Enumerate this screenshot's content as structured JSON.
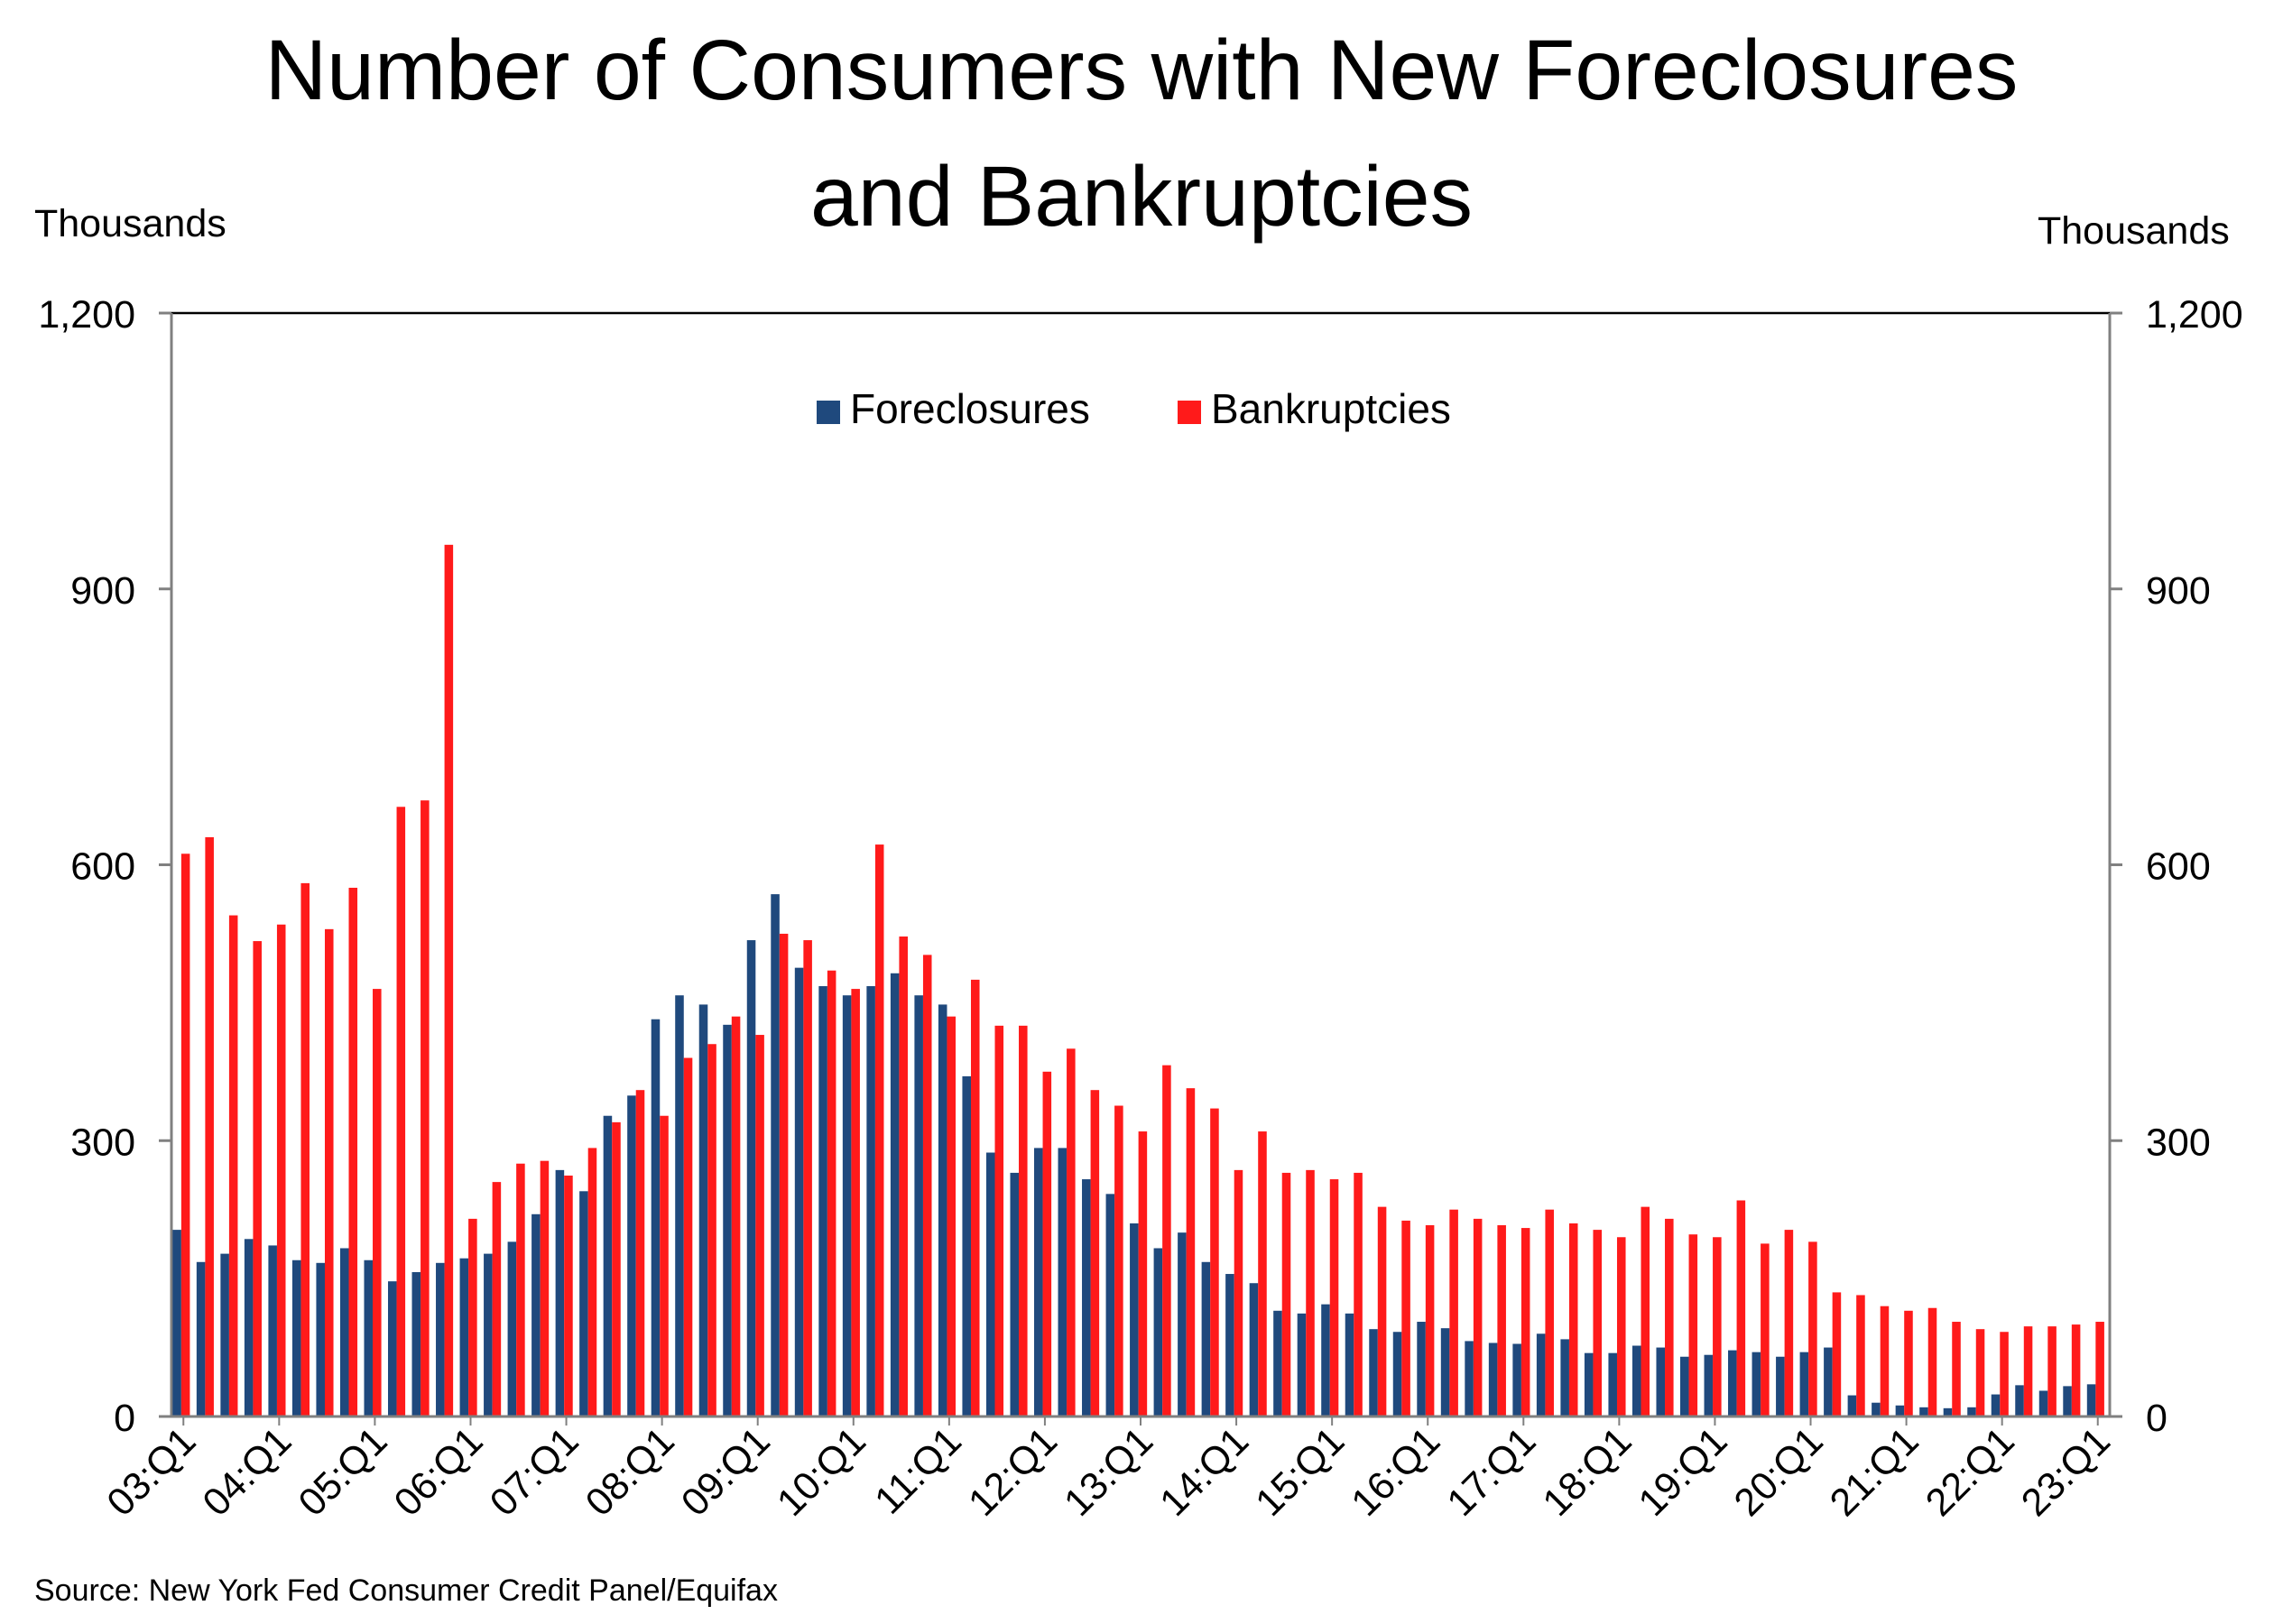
{
  "title_line1": "Number of Consumers with New Foreclosures",
  "title_line2": "and Bankruptcies",
  "left_unit": "Thousands",
  "right_unit": "Thousands",
  "source": "Source: New York Fed Consumer Credit Panel/Equifax",
  "colors": {
    "foreclosures": "#1f497d",
    "bankruptcies": "#ff1a1a",
    "axis": "#808080"
  },
  "chart_data": {
    "type": "bar",
    "title": "Number of Consumers with New Foreclosures and Bankruptcies",
    "ylabel_left": "Thousands",
    "ylabel_right": "Thousands",
    "ylim": [
      0,
      1200
    ],
    "yticks": [
      0,
      300,
      600,
      900,
      1200
    ],
    "ytick_labels": [
      "0",
      "300",
      "600",
      "900",
      "1,200"
    ],
    "grid": false,
    "legend_position": "top-center",
    "categories": [
      "03:Q1",
      "03:Q2",
      "03:Q3",
      "03:Q4",
      "04:Q1",
      "04:Q2",
      "04:Q3",
      "04:Q4",
      "05:Q1",
      "05:Q2",
      "05:Q3",
      "05:Q4",
      "06:Q1",
      "06:Q2",
      "06:Q3",
      "06:Q4",
      "07:Q1",
      "07:Q2",
      "07:Q3",
      "07:Q4",
      "08:Q1",
      "08:Q2",
      "08:Q3",
      "08:Q4",
      "09:Q1",
      "09:Q2",
      "09:Q3",
      "09:Q4",
      "10:Q1",
      "10:Q2",
      "10:Q3",
      "10:Q4",
      "11:Q1",
      "11:Q2",
      "11:Q3",
      "11:Q4",
      "12:Q1",
      "12:Q2",
      "12:Q3",
      "12:Q4",
      "13:Q1",
      "13:Q2",
      "13:Q3",
      "13:Q4",
      "14:Q1",
      "14:Q2",
      "14:Q3",
      "14:Q4",
      "15:Q1",
      "15:Q2",
      "15:Q3",
      "15:Q4",
      "16:Q1",
      "16:Q2",
      "16:Q3",
      "16:Q4",
      "17:Q1",
      "17:Q2",
      "17:Q3",
      "17:Q4",
      "18:Q1",
      "18:Q2",
      "18:Q3",
      "18:Q4",
      "19:Q1",
      "19:Q2",
      "19:Q3",
      "19:Q4",
      "20:Q1",
      "20:Q2",
      "20:Q3",
      "20:Q4",
      "21:Q1",
      "21:Q2",
      "21:Q3",
      "21:Q4",
      "22:Q1",
      "22:Q2",
      "22:Q3",
      "22:Q4",
      "23:Q1"
    ],
    "xtick_labels": [
      "03:Q1",
      "04:Q1",
      "05:Q1",
      "06:Q1",
      "07:Q1",
      "08:Q1",
      "09:Q1",
      "10:Q1",
      "11:Q1",
      "12:Q1",
      "13:Q1",
      "14:Q1",
      "15:Q1",
      "16:Q1",
      "17:Q1",
      "18:Q1",
      "19:Q1",
      "20:Q1",
      "21:Q1",
      "22:Q1",
      "23:Q1"
    ],
    "series": [
      {
        "name": "Foreclosures",
        "values": [
          203,
          168,
          177,
          193,
          186,
          170,
          167,
          183,
          170,
          147,
          157,
          167,
          172,
          177,
          190,
          220,
          268,
          245,
          327,
          349,
          432,
          458,
          448,
          426,
          518,
          568,
          488,
          468,
          458,
          468,
          482,
          458,
          448,
          370,
          287,
          265,
          292,
          292,
          258,
          242,
          210,
          183,
          200,
          168,
          155,
          145,
          115,
          112,
          122,
          112,
          95,
          92,
          103,
          96,
          82,
          80,
          79,
          90,
          84,
          69,
          69,
          77,
          75,
          65,
          67,
          72,
          70,
          65,
          70,
          75,
          23,
          15,
          12,
          10,
          9,
          10,
          24,
          34,
          28,
          33,
          35
        ]
      },
      {
        "name": "Bankruptcies",
        "values": [
          612,
          630,
          545,
          517,
          535,
          580,
          530,
          575,
          465,
          663,
          670,
          948,
          215,
          255,
          275,
          278,
          262,
          292,
          320,
          355,
          327,
          390,
          405,
          435,
          415,
          525,
          518,
          485,
          465,
          622,
          522,
          502,
          435,
          475,
          425,
          425,
          375,
          400,
          355,
          338,
          310,
          382,
          357,
          335,
          268,
          310,
          265,
          268,
          258,
          265,
          228,
          213,
          208,
          225,
          215,
          208,
          205,
          225,
          210,
          203,
          195,
          228,
          215,
          198,
          195,
          235,
          188,
          203,
          190,
          135,
          132,
          120,
          115,
          118,
          103,
          95,
          92,
          98,
          98,
          100,
          103
        ]
      }
    ]
  }
}
